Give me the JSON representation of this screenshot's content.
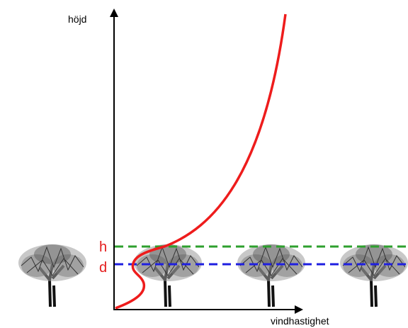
{
  "axes": {
    "y_label": "höjd",
    "x_label": "vindhastighet"
  },
  "levels": {
    "h": "h",
    "d": "d"
  }
}
